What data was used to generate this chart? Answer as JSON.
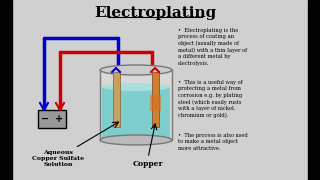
{
  "title": "Electroplating",
  "bg_color": "#d0d0d0",
  "bullet_points": [
    "Electroplating is the\nprocess of coating an\nobject (usually made of\nmetal) with a thin layer of\na different metal by\nelectrolysis.",
    "This is a useful way of\nprotecting a metal from\ncorrosion e.g. by plating\nsteel (which easily rusts\nwith a layer of nickel,\nchromium or gold).",
    "The process is also used\nto make a metal object\nmore attractive."
  ],
  "label_aqueous": "Aqueous\nCopper Sulfate\nSolution",
  "label_copper": "Copper",
  "wire_blue_color": "#0000cc",
  "wire_red_color": "#cc0000",
  "solution_color": "#7ecece",
  "electrode_color": "#c8a060",
  "cathode_color": "#d08030",
  "title_color": "#000000",
  "text_color": "#000000"
}
